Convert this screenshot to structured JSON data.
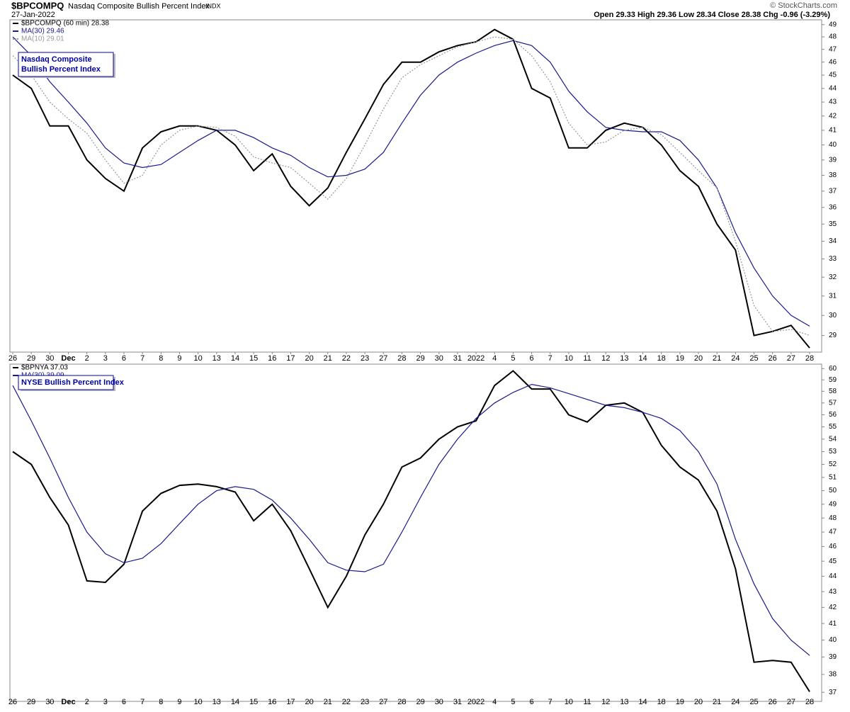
{
  "header": {
    "symbol": "$BPCOMPQ",
    "name": "Nasdaq Composite Bullish Percent Index",
    "exchange": "INDX",
    "date": "27-Jan-2022",
    "credit": "© StockCharts.com",
    "quote": "Open 29.33  High 29.36  Low 28.34  Close 28.38  Chg -0.96 (-3.29%)"
  },
  "chart_data": [
    {
      "type": "line",
      "log_scale": true,
      "grid": false,
      "annotation": [
        "Nasdaq Composite",
        "Bullish Percent Index"
      ],
      "categories": [
        "26",
        "29",
        "30",
        "Dec",
        "2",
        "3",
        "6",
        "7",
        "8",
        "9",
        "10",
        "13",
        "14",
        "15",
        "16",
        "17",
        "20",
        "21",
        "22",
        "23",
        "27",
        "28",
        "29",
        "30",
        "31",
        "2022",
        "4",
        "5",
        "6",
        "7",
        "10",
        "11",
        "12",
        "13",
        "14",
        "18",
        "19",
        "20",
        "21",
        "24",
        "25",
        "26",
        "27",
        "28"
      ],
      "series": [
        {
          "name": "$BPCOMPQ (60 min) 28.38",
          "color": "#000000",
          "style": "solid",
          "values": [
            45.0,
            44.0,
            41.3,
            41.3,
            39.0,
            37.8,
            37.0,
            39.8,
            40.9,
            41.3,
            41.3,
            41.0,
            40.0,
            38.3,
            39.4,
            37.3,
            36.1,
            37.2,
            39.5,
            41.8,
            44.3,
            46.0,
            46.0,
            46.8,
            47.3,
            47.6,
            48.6,
            47.8,
            44.0,
            43.3,
            39.8,
            39.8,
            41.0,
            41.5,
            41.2,
            40.0,
            38.3,
            37.3,
            35.0,
            33.5,
            29.0,
            29.2,
            29.5,
            28.4
          ]
        },
        {
          "name": "MA(30) 29.46",
          "color": "#1a1a8c",
          "style": "solid",
          "values": [
            48.0,
            46.5,
            44.5,
            43.0,
            41.5,
            39.8,
            38.8,
            38.5,
            38.7,
            39.5,
            40.3,
            41.0,
            41.0,
            40.5,
            39.8,
            39.3,
            38.5,
            37.9,
            38.0,
            38.4,
            39.5,
            41.5,
            43.5,
            45.0,
            46.0,
            46.7,
            47.3,
            47.7,
            47.3,
            46.0,
            43.8,
            42.3,
            41.2,
            41.0,
            40.9,
            40.9,
            40.3,
            39.0,
            37.2,
            34.5,
            32.5,
            31.0,
            30.0,
            29.46
          ]
        },
        {
          "name": "MA(10) 29.01",
          "color": "#999999",
          "style": "dotted",
          "values": [
            46.5,
            45.0,
            43.0,
            41.8,
            40.8,
            39.0,
            37.5,
            38.0,
            40.0,
            41.0,
            41.3,
            41.2,
            40.6,
            39.2,
            38.8,
            38.5,
            37.5,
            36.5,
            37.8,
            40.0,
            42.5,
            44.8,
            45.8,
            46.5,
            47.2,
            47.6,
            48.0,
            47.8,
            46.5,
            44.5,
            41.5,
            40.0,
            40.2,
            41.0,
            41.2,
            40.7,
            39.5,
            38.3,
            37.2,
            34.0,
            30.5,
            29.2,
            29.3,
            29.01
          ]
        }
      ],
      "ylim": [
        28.2,
        49.4
      ],
      "yticks": [
        29,
        30,
        31,
        32,
        33,
        34,
        35,
        36,
        37,
        38,
        39,
        40,
        41,
        42,
        43,
        44,
        45,
        46,
        47,
        48,
        49
      ]
    },
    {
      "type": "line",
      "log_scale": true,
      "grid": false,
      "annotation": [
        "NYSE Bullish Percent Index"
      ],
      "categories": [
        "26",
        "29",
        "30",
        "Dec",
        "2",
        "3",
        "6",
        "7",
        "8",
        "9",
        "10",
        "13",
        "14",
        "15",
        "16",
        "17",
        "20",
        "21",
        "22",
        "23",
        "27",
        "28",
        "29",
        "30",
        "31",
        "2022",
        "4",
        "5",
        "6",
        "7",
        "10",
        "11",
        "12",
        "13",
        "14",
        "18",
        "19",
        "20",
        "21",
        "24",
        "25",
        "26",
        "27",
        "28"
      ],
      "series": [
        {
          "name": "$BPNYA 37.03",
          "color": "#000000",
          "style": "solid",
          "values": [
            53.0,
            52.0,
            49.5,
            47.5,
            43.7,
            43.6,
            44.8,
            48.5,
            49.8,
            50.4,
            50.5,
            50.3,
            49.9,
            47.8,
            49.0,
            47.1,
            44.5,
            42.0,
            44.0,
            46.8,
            49.0,
            51.8,
            52.5,
            54.0,
            55.0,
            55.5,
            58.5,
            59.8,
            58.2,
            58.2,
            56.0,
            55.4,
            56.8,
            57.0,
            56.2,
            53.5,
            51.8,
            50.8,
            48.5,
            44.5,
            38.7,
            38.8,
            38.7,
            37.03
          ]
        },
        {
          "name": "MA(30) 39.09",
          "color": "#1a1a8c",
          "style": "solid",
          "values": [
            58.5,
            55.5,
            52.5,
            49.5,
            47.0,
            45.5,
            44.9,
            45.2,
            46.2,
            47.6,
            49.0,
            50.0,
            50.3,
            50.1,
            49.3,
            48.0,
            46.5,
            44.9,
            44.4,
            44.3,
            44.8,
            47.0,
            49.5,
            52.0,
            54.0,
            55.7,
            57.0,
            57.9,
            58.6,
            58.3,
            57.8,
            57.3,
            56.8,
            56.6,
            56.2,
            55.7,
            54.7,
            53.0,
            50.5,
            46.5,
            43.5,
            41.3,
            40.0,
            39.09
          ]
        }
      ],
      "ylim": [
        36.5,
        60.4
      ],
      "yticks": [
        37,
        38,
        39,
        40,
        41,
        42,
        43,
        44,
        45,
        46,
        47,
        48,
        49,
        50,
        51,
        52,
        53,
        54,
        55,
        56,
        57,
        58,
        59,
        60
      ]
    }
  ]
}
